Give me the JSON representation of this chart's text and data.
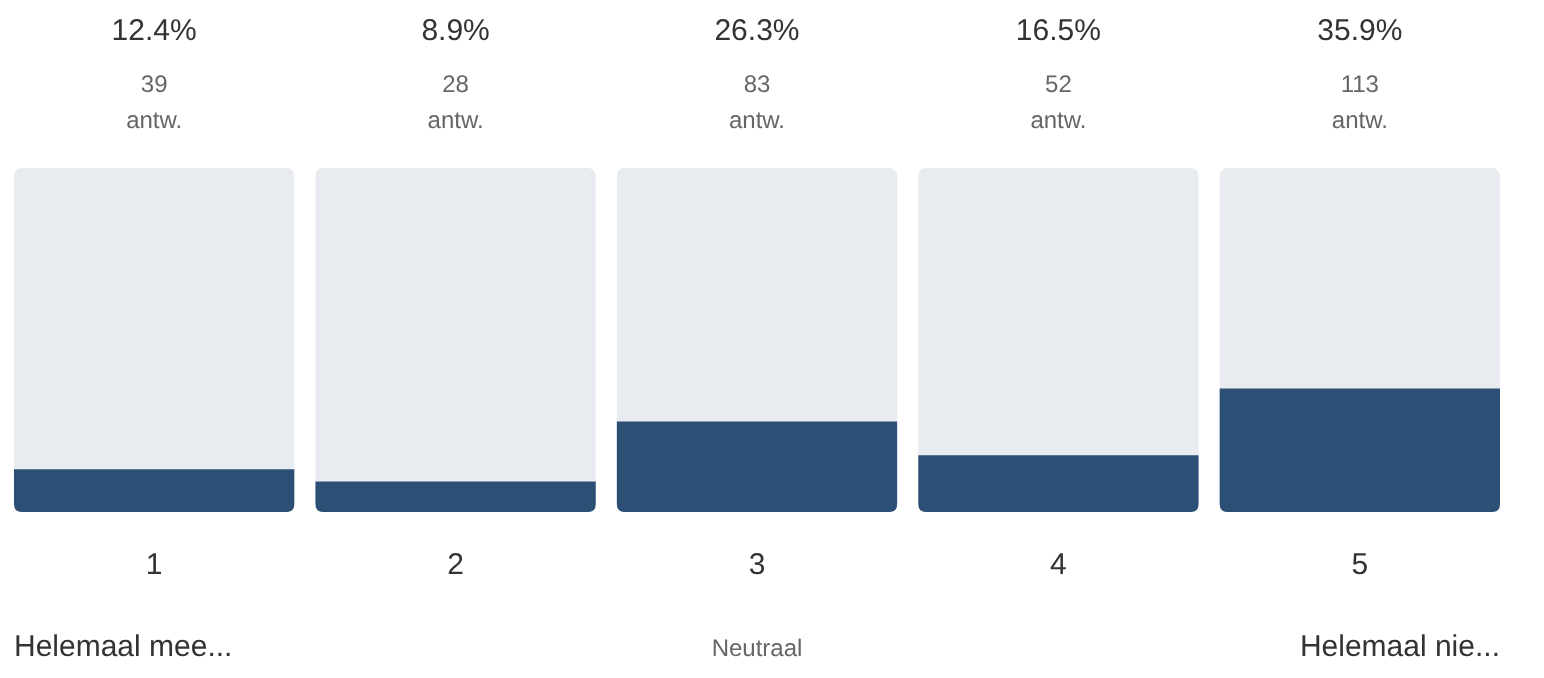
{
  "chart_data": {
    "type": "bar",
    "categories": [
      "1",
      "2",
      "3",
      "4",
      "5"
    ],
    "values": [
      12.4,
      8.9,
      26.3,
      16.5,
      35.9
    ],
    "value_labels": [
      "12.4%",
      "8.9%",
      "26.3%",
      "16.5%",
      "35.9%"
    ],
    "color": "#2c5075",
    "ylim": [
      0,
      100
    ],
    "tick_labels": "x",
    "annotations": [
      "39 antw.",
      "28 antw.",
      "83 antw.",
      "52 antw.",
      "113 antw.",
      "Helemaal mee...",
      "Neutraal",
      "Helemaal nie..."
    ]
  }
}
